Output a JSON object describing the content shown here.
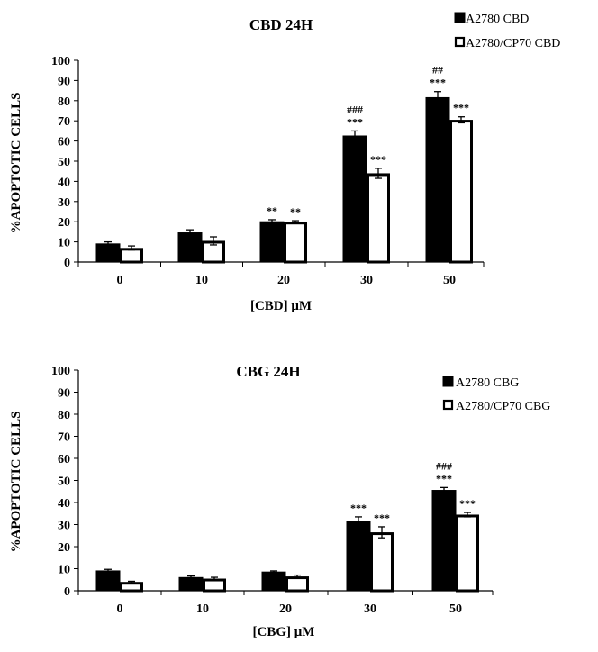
{
  "chart_data": [
    {
      "type": "bar",
      "title": "CBD 24H",
      "xlabel": "[CBD] μM",
      "ylabel": "%APOPTOTIC CELLS",
      "ylim": [
        0,
        100
      ],
      "yticks": [
        0,
        10,
        20,
        30,
        40,
        50,
        60,
        70,
        80,
        90,
        100
      ],
      "grid": false,
      "legend_position": "top-right",
      "categories": [
        "0",
        "10",
        "20",
        "30",
        "50"
      ],
      "series": [
        {
          "name": "A2780 CBD",
          "fill": "#000000",
          "values": [
            9,
            14.5,
            20,
            62.5,
            81.5
          ],
          "errors": [
            1,
            1.5,
            1,
            2.5,
            3
          ],
          "annotations": [
            [],
            [],
            [
              "**"
            ],
            [
              "###",
              "***"
            ],
            [
              "##",
              "***"
            ]
          ]
        },
        {
          "name": "A2780/CP70 CBD",
          "fill": "#ffffff",
          "values": [
            7,
            10.5,
            20,
            44,
            70.5
          ],
          "errors": [
            1,
            2,
            0.5,
            2.5,
            1.5
          ],
          "annotations": [
            [],
            [],
            [
              "**"
            ],
            [
              "***"
            ],
            [
              "***"
            ]
          ]
        }
      ]
    },
    {
      "type": "bar",
      "title": "CBG 24H",
      "xlabel": "[CBG] μM",
      "ylabel": "%APOPTOTIC CELLS",
      "ylim": [
        0,
        100
      ],
      "yticks": [
        0,
        10,
        20,
        30,
        40,
        50,
        60,
        70,
        80,
        90,
        100
      ],
      "grid": false,
      "legend_position": "top-right",
      "categories": [
        "0",
        "10",
        "20",
        "30",
        "50"
      ],
      "series": [
        {
          "name": "A2780 CBG",
          "fill": "#000000",
          "values": [
            9,
            6,
            8.5,
            31.5,
            45.5
          ],
          "errors": [
            0.7,
            0.7,
            0.5,
            2,
            1.3
          ],
          "annotations": [
            [],
            [],
            [],
            [
              "***"
            ],
            [
              "###",
              "***"
            ]
          ]
        },
        {
          "name": "A2780/CP70 CBG",
          "fill": "#ffffff",
          "values": [
            4,
            5.5,
            6.5,
            26.5,
            34.5
          ],
          "errors": [
            0.3,
            0.6,
            0.6,
            2.5,
            1
          ],
          "annotations": [
            [],
            [],
            [],
            [
              "***"
            ],
            [
              "***"
            ]
          ]
        }
      ]
    }
  ]
}
